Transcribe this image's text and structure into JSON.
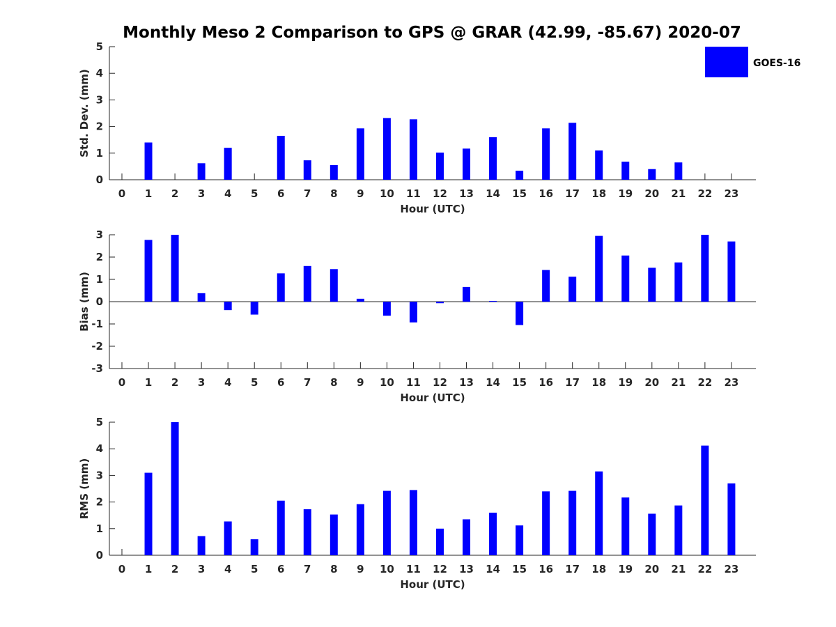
{
  "figure": {
    "title": "Monthly Meso 2 Comparison to GPS @ GRAR (42.99, -85.67) 2020-07"
  },
  "legend": {
    "label": "GOES-16",
    "color": "#0000ff"
  },
  "chart_data": [
    {
      "type": "bar",
      "ylabel": "Std. Dev. (mm)",
      "xlabel": "Hour (UTC)",
      "ylim": [
        0,
        5
      ],
      "yticks": [
        0,
        1,
        2,
        3,
        4,
        5
      ],
      "categories": [
        0,
        1,
        2,
        3,
        4,
        5,
        6,
        7,
        8,
        9,
        10,
        11,
        12,
        13,
        14,
        15,
        16,
        17,
        18,
        19,
        20,
        21,
        22,
        23
      ],
      "series": [
        {
          "name": "GOES-16",
          "color": "#0000ff",
          "values": [
            0,
            1.4,
            0,
            0.62,
            1.2,
            0,
            1.65,
            0.73,
            0.55,
            1.93,
            2.32,
            2.27,
            1.02,
            1.17,
            1.6,
            0.34,
            1.93,
            2.14,
            1.1,
            0.68,
            0.4,
            0.65,
            0,
            0
          ]
        }
      ]
    },
    {
      "type": "bar",
      "ylabel": "Bias (mm)",
      "xlabel": "Hour (UTC)",
      "ylim": [
        -3,
        3
      ],
      "yticks": [
        -3,
        -2,
        -1,
        0,
        1,
        2,
        3
      ],
      "categories": [
        0,
        1,
        2,
        3,
        4,
        5,
        6,
        7,
        8,
        9,
        10,
        11,
        12,
        13,
        14,
        15,
        16,
        17,
        18,
        19,
        20,
        21,
        22,
        23
      ],
      "series": [
        {
          "name": "GOES-16",
          "color": "#0000ff",
          "values": [
            0,
            2.77,
            3.0,
            0.38,
            -0.38,
            -0.58,
            1.27,
            1.6,
            1.46,
            0.13,
            -0.63,
            -0.93,
            -0.07,
            0.66,
            0.03,
            -1.05,
            1.42,
            1.12,
            2.95,
            2.07,
            1.52,
            1.76,
            3.0,
            2.7
          ]
        }
      ]
    },
    {
      "type": "bar",
      "ylabel": "RMS (mm)",
      "xlabel": "Hour (UTC)",
      "ylim": [
        0,
        5
      ],
      "yticks": [
        0,
        1,
        2,
        3,
        4,
        5
      ],
      "categories": [
        0,
        1,
        2,
        3,
        4,
        5,
        6,
        7,
        8,
        9,
        10,
        11,
        12,
        13,
        14,
        15,
        16,
        17,
        18,
        19,
        20,
        21,
        22,
        23
      ],
      "series": [
        {
          "name": "GOES-16",
          "color": "#0000ff",
          "values": [
            0,
            3.1,
            5.0,
            0.72,
            1.27,
            0.6,
            2.05,
            1.73,
            1.53,
            1.92,
            2.42,
            2.45,
            1.0,
            1.35,
            1.6,
            1.12,
            2.4,
            2.42,
            3.15,
            2.17,
            1.56,
            1.87,
            4.12,
            2.7
          ]
        }
      ]
    }
  ]
}
